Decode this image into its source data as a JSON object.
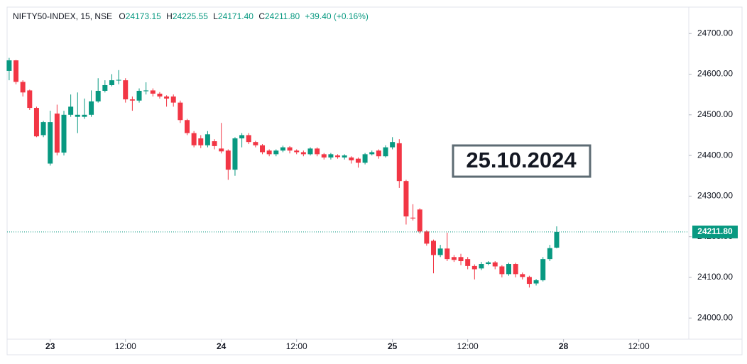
{
  "header": {
    "symbol": "NIFTY50-INDEX, 15, NSE",
    "open_key": "O",
    "open": "24173.15",
    "high_key": "H",
    "high": "24225.55",
    "low_key": "L",
    "low": "24171.40",
    "close_key": "C",
    "close": "24211.80",
    "change": "+39.40 (+0.16%)"
  },
  "chart_data": {
    "type": "candlestick",
    "annotation": "25.10.2024",
    "last_price_label": "24211.80",
    "up_color": "#089981",
    "down_color": "#f23645",
    "xlim": [
      -0.3,
      99.3
    ],
    "xticks": [
      {
        "value": 6,
        "label": "23"
      },
      {
        "value": 17,
        "label": "12:00"
      },
      {
        "value": 31,
        "label": "24"
      },
      {
        "value": 42,
        "label": "12:00"
      },
      {
        "value": 56,
        "label": "25"
      },
      {
        "value": 67,
        "label": "12:00"
      },
      {
        "value": 81,
        "label": "28"
      },
      {
        "value": 92,
        "label": "12:00"
      }
    ],
    "ylim": [
      23948,
      24765
    ],
    "yticks": [
      {
        "value": 24000,
        "label": "24000.00"
      },
      {
        "value": 24100,
        "label": "24100.00"
      },
      {
        "value": 24200,
        "label": "24200.00"
      },
      {
        "value": 24300,
        "label": "24300.00"
      },
      {
        "value": 24400,
        "label": "24400.00"
      },
      {
        "value": 24500,
        "label": "24500.00"
      },
      {
        "value": 24600,
        "label": "24600.00"
      },
      {
        "value": 24700,
        "label": "24700.00"
      }
    ],
    "open": [
      24608,
      24634,
      24581,
      24560,
      24517,
      24450,
      24380,
      24503,
      24407,
      24500,
      24495,
      24495,
      24500,
      24533,
      24559,
      24573,
      24585,
      24585,
      24538,
      24535,
      24558,
      24560,
      24552,
      24545,
      24545,
      24530,
      24487,
      24455,
      24442,
      24425,
      24435,
      24417,
      24412,
      24365,
      24442,
      24450,
      24433,
      24425,
      24412,
      24403,
      24412,
      24420,
      24412,
      24408,
      24403,
      24417,
      24403,
      24395,
      24400,
      24395,
      24395,
      24392,
      24382,
      24403,
      24412,
      24398,
      24420,
      24430,
      24337,
      24247,
      24267,
      24213,
      24190,
      24155,
      24171,
      24150,
      24150,
      24145,
      24128,
      24122,
      24133,
      24137,
      24127,
      24108,
      24133,
      24108,
      24101,
      24085,
      24093,
      24145,
      24173.15
    ],
    "high": [
      24640,
      24635,
      24585,
      24562,
      24520,
      24485,
      24510,
      24525,
      24510,
      24550,
      24555,
      24540,
      24560,
      24590,
      24585,
      24600,
      24610,
      24590,
      24545,
      24565,
      24580,
      24565,
      24556,
      24548,
      24550,
      24535,
      24490,
      24460,
      24450,
      24460,
      24440,
      24480,
      24415,
      24445,
      24455,
      24455,
      24436,
      24428,
      24415,
      24415,
      24424,
      24423,
      24415,
      24412,
      24420,
      24420,
      24406,
      24406,
      24403,
      24403,
      24398,
      24395,
      24406,
      24412,
      24415,
      24425,
      24445,
      24440,
      24340,
      24280,
      24270,
      24216,
      24193,
      24180,
      24210,
      24155,
      24158,
      24150,
      24132,
      24138,
      24140,
      24140,
      24130,
      24136,
      24136,
      24112,
      24104,
      24096,
      24150,
      24180,
      24225.55
    ],
    "low": [
      24585,
      24575,
      24545,
      24512,
      24445,
      24445,
      24375,
      24400,
      24400,
      24495,
      24455,
      24490,
      24495,
      24530,
      24555,
      24570,
      24575,
      24530,
      24510,
      24530,
      24550,
      24545,
      24540,
      24520,
      24520,
      24480,
      24450,
      24420,
      24418,
      24420,
      24415,
      24405,
      24340,
      24350,
      24420,
      24428,
      24420,
      24403,
      24398,
      24398,
      24408,
      24405,
      24403,
      24398,
      24400,
      24398,
      24390,
      24390,
      24392,
      24390,
      24380,
      24370,
      24378,
      24400,
      24392,
      24395,
      24415,
      24320,
      24230,
      24240,
      24208,
      24178,
      24110,
      24150,
      24140,
      24138,
      24130,
      24120,
      24095,
      24118,
      24130,
      24120,
      24100,
      24104,
      24100,
      24095,
      24075,
      24080,
      24090,
      24140,
      24171.4
    ],
    "close": [
      24634,
      24581,
      24555,
      24517,
      24447,
      24482,
      24482,
      24407,
      24500,
      24520,
      24500,
      24500,
      24533,
      24559,
      24573,
      24585,
      24586,
      24538,
      24535,
      24559,
      24560,
      24552,
      24545,
      24540,
      24530,
      24487,
      24455,
      24425,
      24425,
      24452,
      24423,
      24410,
      24365,
      24442,
      24450,
      24433,
      24425,
      24408,
      24403,
      24412,
      24420,
      24412,
      24408,
      24403,
      24417,
      24403,
      24395,
      24403,
      24396,
      24400,
      24388,
      24382,
      24403,
      24408,
      24398,
      24420,
      24433,
      24337,
      24250,
      24245,
      24213,
      24183,
      24155,
      24171,
      24145,
      24143,
      24140,
      24128,
      24120,
      24133,
      24137,
      24127,
      24108,
      24133,
      24108,
      24101,
      24084,
      24093,
      24145,
      24172,
      24211.8
    ]
  }
}
